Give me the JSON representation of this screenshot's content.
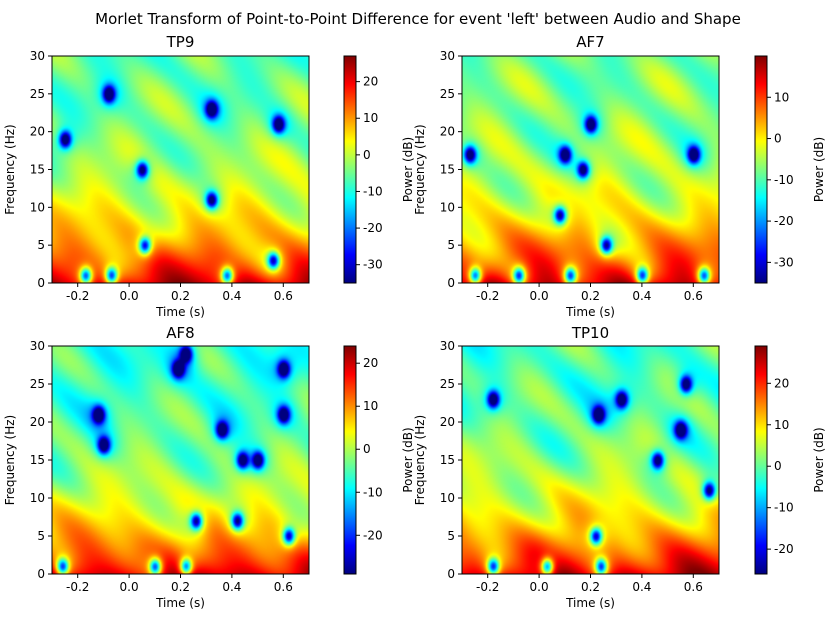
{
  "figure_title": "Morlet Transform of Point-to-Point Difference for event 'left' between Audio and Shape",
  "colors": {
    "colormap": "jet",
    "jet_stops": [
      "#00007f",
      "#0000ff",
      "#007fff",
      "#00ffff",
      "#7fff7f",
      "#ffff00",
      "#ff7f00",
      "#ff0000",
      "#7f0000"
    ]
  },
  "chart_data": [
    {
      "type": "heatmap",
      "title": "TP9",
      "xlabel": "Time (s)",
      "ylabel": "Frequency (Hz)",
      "xlim": [
        -0.3,
        0.7
      ],
      "ylim": [
        0,
        30
      ],
      "xticks": [
        "-0.2",
        "0.0",
        "0.2",
        "0.4",
        "0.6"
      ],
      "yticks": [
        "0",
        "5",
        "10",
        "15",
        "20",
        "25",
        "30"
      ],
      "colorbar": {
        "label": "Power (dB)",
        "min": -35,
        "max": 27,
        "ticks": [
          "20",
          "10",
          "0",
          "-10",
          "-20",
          "-30"
        ]
      },
      "minima_time_freq": [
        [
          -0.08,
          25
        ],
        [
          0.32,
          23
        ],
        [
          0.58,
          21
        ],
        [
          -0.25,
          19
        ],
        [
          0.05,
          15
        ],
        [
          0.32,
          11
        ],
        [
          -0.17,
          1
        ],
        [
          0.06,
          5
        ],
        [
          0.56,
          3
        ],
        [
          0.38,
          1
        ],
        [
          -0.07,
          1
        ]
      ]
    },
    {
      "type": "heatmap",
      "title": "AF7",
      "xlabel": "Time (s)",
      "ylabel": "Frequency (Hz)",
      "xlim": [
        -0.3,
        0.7
      ],
      "ylim": [
        0,
        30
      ],
      "xticks": [
        "-0.2",
        "0.0",
        "0.2",
        "0.4",
        "0.6"
      ],
      "yticks": [
        "0",
        "5",
        "10",
        "15",
        "20",
        "25",
        "30"
      ],
      "colorbar": {
        "label": "Power (dB)",
        "min": -35,
        "max": 20,
        "ticks": [
          "10",
          "0",
          "-10",
          "-20",
          "-30"
        ]
      },
      "minima_time_freq": [
        [
          -0.27,
          17
        ],
        [
          0.1,
          17
        ],
        [
          0.6,
          17
        ],
        [
          0.08,
          9
        ],
        [
          0.17,
          15
        ],
        [
          0.2,
          21
        ],
        [
          -0.25,
          1
        ],
        [
          -0.08,
          1
        ],
        [
          0.12,
          1
        ],
        [
          0.26,
          5
        ],
        [
          0.4,
          1
        ],
        [
          0.64,
          1
        ]
      ]
    },
    {
      "type": "heatmap",
      "title": "AF8",
      "xlabel": "Time (s)",
      "ylabel": "Frequency (Hz)",
      "xlim": [
        -0.3,
        0.7
      ],
      "ylim": [
        0,
        30
      ],
      "xticks": [
        "-0.2",
        "0.0",
        "0.2",
        "0.4",
        "0.6"
      ],
      "yticks": [
        "0",
        "5",
        "10",
        "15",
        "20",
        "25",
        "30"
      ],
      "colorbar": {
        "label": "Power (dB)",
        "min": -29,
        "max": 24,
        "ticks": [
          "20",
          "10",
          "0",
          "-10",
          "-20"
        ]
      },
      "minima_time_freq": [
        [
          -0.12,
          21
        ],
        [
          -0.1,
          17
        ],
        [
          0.22,
          29
        ],
        [
          0.19,
          27
        ],
        [
          0.36,
          19
        ],
        [
          0.44,
          15
        ],
        [
          0.5,
          15
        ],
        [
          0.6,
          27
        ],
        [
          0.6,
          21
        ],
        [
          0.26,
          7
        ],
        [
          0.42,
          7
        ],
        [
          0.62,
          5
        ],
        [
          -0.26,
          1
        ],
        [
          0.1,
          1
        ],
        [
          0.22,
          1
        ]
      ]
    },
    {
      "type": "heatmap",
      "title": "TP10",
      "xlabel": "Time (s)",
      "ylabel": "Frequency (Hz)",
      "xlim": [
        -0.3,
        0.7
      ],
      "ylim": [
        0,
        30
      ],
      "xticks": [
        "-0.2",
        "0.0",
        "0.2",
        "0.4",
        "0.6"
      ],
      "yticks": [
        "0",
        "5",
        "10",
        "15",
        "20",
        "25",
        "30"
      ],
      "colorbar": {
        "label": "Power (dB)",
        "min": -26,
        "max": 29,
        "ticks": [
          "20",
          "10",
          "0",
          "-10",
          "-20"
        ]
      },
      "minima_time_freq": [
        [
          -0.18,
          23
        ],
        [
          0.23,
          21
        ],
        [
          0.32,
          23
        ],
        [
          0.57,
          25
        ],
        [
          0.55,
          19
        ],
        [
          0.46,
          15
        ],
        [
          0.66,
          11
        ],
        [
          0.22,
          5
        ],
        [
          -0.18,
          1
        ],
        [
          0.03,
          1
        ],
        [
          0.24,
          1
        ]
      ]
    }
  ]
}
